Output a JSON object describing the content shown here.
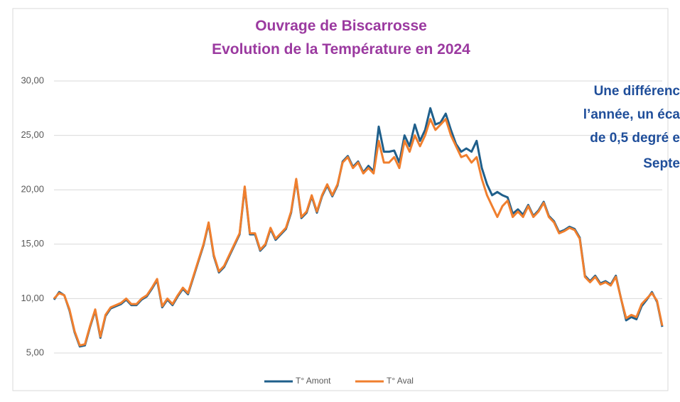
{
  "chart_data": {
    "type": "line",
    "title": [
      "Ouvrage de Biscarrosse",
      "Evolution de la Température en 2024"
    ],
    "annotation": [
      "Une différenc",
      "l’année, un éca",
      "de 0,5 degré e",
      "Septe"
    ],
    "ylim": [
      5,
      30
    ],
    "yticks": [
      {
        "value": 5,
        "label": "5,00"
      },
      {
        "value": 10,
        "label": "10,00"
      },
      {
        "value": 15,
        "label": "15,00"
      },
      {
        "value": 20,
        "label": "20,00"
      },
      {
        "value": 25,
        "label": "25,00"
      },
      {
        "value": 30,
        "label": "30,00"
      }
    ],
    "grid": true,
    "legend": "bottom",
    "series": [
      {
        "name": "T° Amont",
        "color": "#1f5f8b",
        "values": [
          9.9,
          10.6,
          10.3,
          8.9,
          6.9,
          5.6,
          5.7,
          7.4,
          8.9,
          6.4,
          8.4,
          9.1,
          9.3,
          9.5,
          9.9,
          9.4,
          9.4,
          9.9,
          10.2,
          10.9,
          11.7,
          9.2,
          9.9,
          9.4,
          10.2,
          10.9,
          10.4,
          11.9,
          13.4,
          14.9,
          16.9,
          13.9,
          12.4,
          12.9,
          13.9,
          14.9,
          15.9,
          20.2,
          15.9,
          15.9,
          14.4,
          14.9,
          16.4,
          15.4,
          15.9,
          16.4,
          17.9,
          20.9,
          17.4,
          17.9,
          19.4,
          17.9,
          19.4,
          20.4,
          19.4,
          20.4,
          22.6,
          23.1,
          22.1,
          22.6,
          21.6,
          22.2,
          21.7,
          25.8,
          23.5,
          23.5,
          23.6,
          22.5,
          25.0,
          24.0,
          26.0,
          24.5,
          25.5,
          27.5,
          26.0,
          26.2,
          27.0,
          25.5,
          24.2,
          23.5,
          23.8,
          23.5,
          24.5,
          22.0,
          20.5,
          19.5,
          19.8,
          19.5,
          19.3,
          17.8,
          18.2,
          17.7,
          18.6,
          17.6,
          18.1,
          18.9,
          17.6,
          17.1,
          16.1,
          16.3,
          16.6,
          16.4,
          15.6,
          12.1,
          11.6,
          12.1,
          11.4,
          11.6,
          11.3,
          12.1,
          10.0,
          8.0,
          8.3,
          8.1,
          9.3,
          9.9,
          10.6,
          9.7,
          7.4
        ]
      },
      {
        "name": "T° Aval",
        "color": "#f07f2e",
        "values": [
          10.0,
          10.5,
          10.3,
          9.0,
          7.0,
          5.7,
          5.8,
          7.5,
          9.0,
          6.5,
          8.5,
          9.2,
          9.4,
          9.6,
          10.0,
          9.5,
          9.5,
          10.0,
          10.3,
          11.0,
          11.8,
          9.3,
          10.0,
          9.5,
          10.3,
          11.0,
          10.5,
          12.0,
          13.5,
          15.0,
          17.0,
          14.0,
          12.5,
          13.0,
          14.0,
          15.0,
          16.0,
          20.3,
          16.0,
          16.0,
          14.5,
          15.0,
          16.5,
          15.5,
          16.0,
          16.5,
          18.0,
          21.0,
          17.5,
          18.0,
          19.5,
          18.0,
          19.5,
          20.5,
          19.5,
          20.5,
          22.5,
          23.0,
          22.0,
          22.5,
          21.5,
          22.0,
          21.5,
          24.5,
          22.5,
          22.5,
          23.0,
          22.0,
          24.5,
          23.5,
          25.0,
          24.0,
          25.0,
          26.5,
          25.5,
          26.0,
          26.5,
          25.0,
          24.0,
          23.0,
          23.2,
          22.5,
          23.0,
          21.0,
          19.5,
          18.5,
          17.5,
          18.5,
          19.0,
          17.5,
          18.0,
          17.5,
          18.5,
          17.5,
          18.0,
          18.8,
          17.5,
          17.0,
          16.0,
          16.2,
          16.5,
          16.3,
          15.5,
          12.0,
          11.5,
          12.0,
          11.3,
          11.5,
          11.2,
          12.0,
          10.0,
          8.2,
          8.5,
          8.3,
          9.5,
          10.0,
          10.5,
          9.8,
          7.5
        ]
      }
    ]
  }
}
